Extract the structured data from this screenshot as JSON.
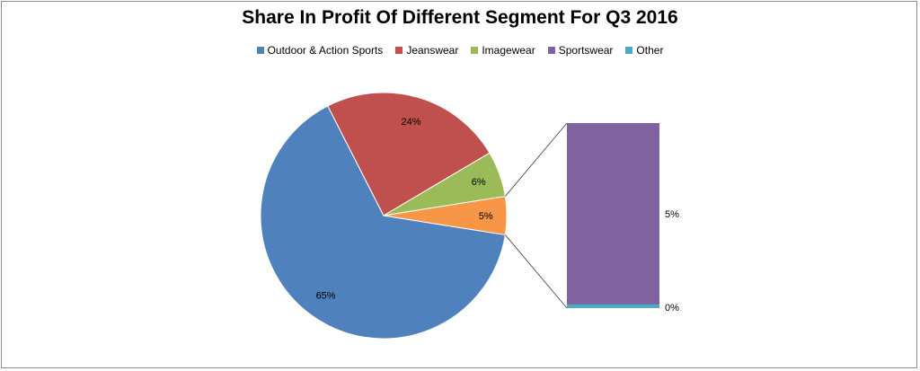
{
  "chart_data": {
    "type": "pie",
    "subtype": "bar-of-pie",
    "title": "Share In Profit Of Different Segment For Q3 2016",
    "legend_position": "top",
    "series": [
      {
        "name": "Outdoor & Action Sports",
        "value": 65,
        "label": "65%",
        "color": "#4f81bd"
      },
      {
        "name": "Jeanswear",
        "value": 24,
        "label": "24%",
        "color": "#c0504d"
      },
      {
        "name": "Imagewear",
        "value": 6,
        "label": "6%",
        "color": "#9bbb59"
      },
      {
        "name": "Sportswear",
        "value": 5,
        "label": "5%",
        "color": "#8064a2"
      },
      {
        "name": "Other",
        "value": 0,
        "label": "0%",
        "color": "#4bacc6"
      }
    ],
    "pie_other_slice": {
      "label": "5%",
      "value": 5,
      "color": "#f79646"
    },
    "secondary_bar": [
      {
        "name": "Sportswear",
        "value": 5,
        "label": "5%",
        "color": "#8064a2"
      },
      {
        "name": "Other",
        "value": 0.1,
        "label": "0%",
        "color": "#4bacc6"
      }
    ]
  }
}
